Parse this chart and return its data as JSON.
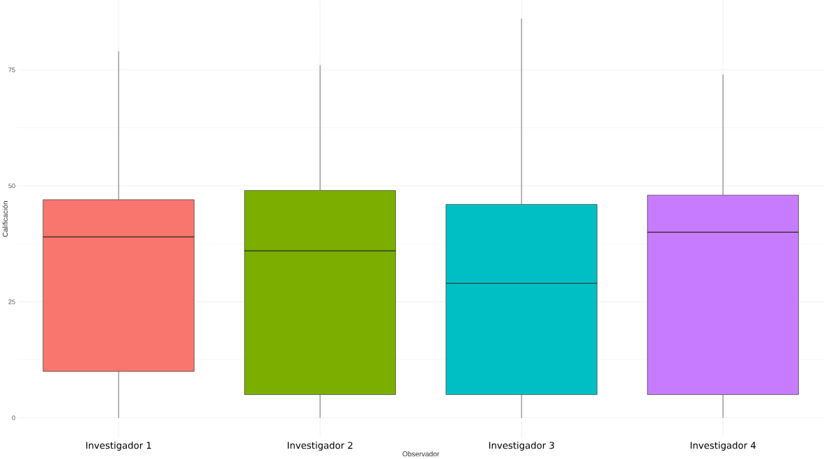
{
  "chart_data": {
    "type": "box",
    "xlabel": "Observador",
    "ylabel": "Calificación",
    "categories": [
      "Investigador 1",
      "Investigador 2",
      "Investigador 3",
      "Investigador 4"
    ],
    "colors": [
      "#f8766d",
      "#7cae00",
      "#00bfc4",
      "#c77cff"
    ],
    "boxes": [
      {
        "low": 0,
        "q1": 10,
        "median": 39,
        "q3": 47,
        "high": 79
      },
      {
        "low": 0,
        "q1": 5,
        "median": 36,
        "q3": 49,
        "high": 76
      },
      {
        "low": 0,
        "q1": 5,
        "median": 29,
        "q3": 46,
        "high": 86
      },
      {
        "low": 0,
        "q1": 5,
        "median": 40,
        "q3": 48,
        "high": 74
      }
    ],
    "ylim": [
      -4.3,
      90
    ],
    "yticks": [
      0,
      25,
      50,
      75
    ],
    "grid": true
  }
}
